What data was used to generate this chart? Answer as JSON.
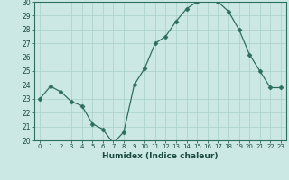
{
  "xlabel": "Humidex (Indice chaleur)",
  "x": [
    0,
    1,
    2,
    3,
    4,
    5,
    6,
    7,
    8,
    9,
    10,
    11,
    12,
    13,
    14,
    15,
    16,
    17,
    18,
    19,
    20,
    21,
    22,
    23
  ],
  "y": [
    23.0,
    23.9,
    23.5,
    22.8,
    22.5,
    21.2,
    20.8,
    19.8,
    20.6,
    24.0,
    25.2,
    27.0,
    27.5,
    28.6,
    29.5,
    30.0,
    30.2,
    30.0,
    29.3,
    28.0,
    26.2,
    25.0,
    23.8,
    23.8
  ],
  "ylim": [
    20,
    30
  ],
  "yticks": [
    20,
    21,
    22,
    23,
    24,
    25,
    26,
    27,
    28,
    29,
    30
  ],
  "line_color": "#2e6e5e",
  "marker": "D",
  "marker_size": 2.5,
  "bg_color": "#cce8e4",
  "grid_color": "#aacfcc",
  "label_color": "#1a4a40",
  "tick_color": "#1a4a40"
}
